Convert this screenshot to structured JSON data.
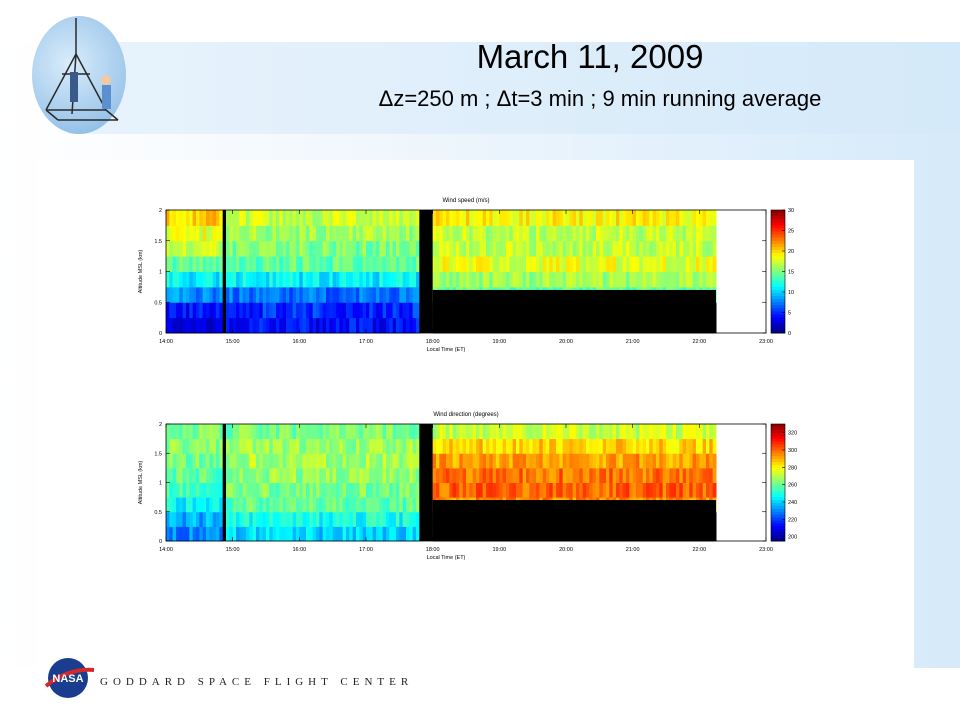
{
  "slide": {
    "title": "March 11, 2009",
    "subtitle": "Δz=250 m ; Δt=3 min ; 9 min running average",
    "footer": "GODDARD SPACE FLIGHT CENTER",
    "nasa_logo_text": "NASA"
  },
  "chart_data": [
    {
      "type": "heatmap",
      "title": "Wind speed (m/s)",
      "xlabel": "Local Time (ET)",
      "ylabel": "Altitude MSL (km)",
      "x_ticks": [
        "14:00",
        "15:00",
        "16:00",
        "17:00",
        "18:00",
        "19:00",
        "20:00",
        "21:00",
        "22:00",
        "23:00"
      ],
      "y_ticks": [
        "0",
        "0.5",
        "1",
        "1.5",
        "2"
      ],
      "xlim": [
        14.0,
        23.0
      ],
      "ylim": [
        0,
        2
      ],
      "colorbar": {
        "ticks": [
          "0",
          "5",
          "10",
          "15",
          "20",
          "25",
          "30"
        ],
        "range": [
          0,
          30
        ]
      },
      "colormap": "jet",
      "no_data_color": "#000000",
      "data_end_hour": 22.25,
      "gap_hours": [
        [
          14.85,
          14.9
        ],
        [
          17.8,
          18.0
        ]
      ],
      "ground_mask_after_18": 0.7,
      "altitude_levels": [
        0.125,
        0.375,
        0.625,
        0.875,
        1.125,
        1.375,
        1.625,
        1.875
      ],
      "profiles": [
        {
          "from": 14.0,
          "to": 14.85,
          "values": [
            3,
            4,
            8,
            11,
            14,
            17,
            18,
            20
          ]
        },
        {
          "from": 14.9,
          "to": 17.8,
          "values": [
            4,
            5,
            7,
            11,
            14,
            15,
            16,
            17
          ]
        },
        {
          "from": 18.0,
          "to": 22.25,
          "values": [
            null,
            null,
            14,
            16,
            18,
            17,
            17,
            19
          ]
        }
      ]
    },
    {
      "type": "heatmap",
      "title": "Wind direction (degrees)",
      "xlabel": "Local Time (ET)",
      "ylabel": "Altitude MSL (km)",
      "x_ticks": [
        "14:00",
        "15:00",
        "16:00",
        "17:00",
        "18:00",
        "19:00",
        "20:00",
        "21:00",
        "22:00",
        "23:00"
      ],
      "y_ticks": [
        "0",
        "0.5",
        "1",
        "1.5",
        "2"
      ],
      "xlim": [
        14.0,
        23.0
      ],
      "ylim": [
        0,
        2
      ],
      "colorbar": {
        "ticks": [
          "200",
          "220",
          "240",
          "260",
          "280",
          "300",
          "320"
        ],
        "range": [
          195,
          330
        ]
      },
      "colormap": "jet",
      "no_data_color": "#000000",
      "data_end_hour": 22.25,
      "gap_hours": [
        [
          14.85,
          14.9
        ],
        [
          17.8,
          18.0
        ]
      ],
      "ground_mask_after_18": 0.7,
      "altitude_levels": [
        0.125,
        0.375,
        0.625,
        0.875,
        1.125,
        1.375,
        1.625,
        1.875
      ],
      "profiles": [
        {
          "from": 14.0,
          "to": 14.85,
          "values": [
            230,
            235,
            245,
            255,
            258,
            262,
            263,
            262
          ]
        },
        {
          "from": 14.9,
          "to": 17.8,
          "values": [
            240,
            248,
            258,
            262,
            265,
            268,
            266,
            262
          ]
        },
        {
          "from": 18.0,
          "to": 22.25,
          "values": [
            null,
            null,
            295,
            300,
            298,
            292,
            285,
            272
          ]
        }
      ]
    }
  ]
}
